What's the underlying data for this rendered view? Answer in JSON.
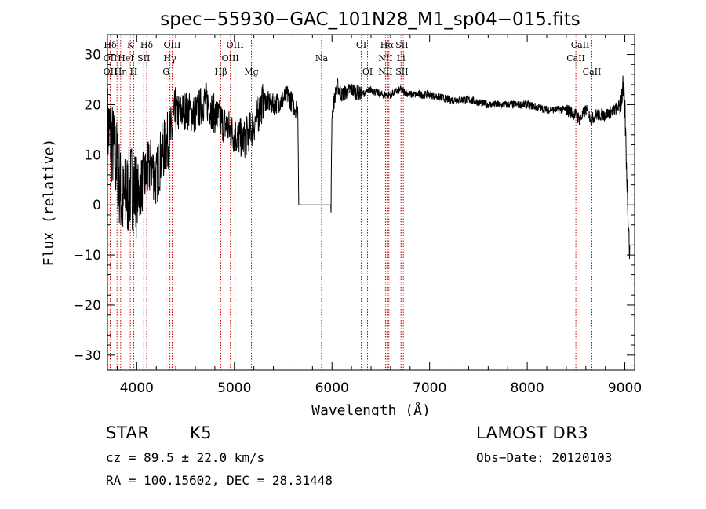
{
  "chart_data": {
    "type": "line",
    "title": "spec−55930−GAC_101N28_M1_sp04−015.fits",
    "xlabel": "Wavelength (Å)",
    "ylabel": "Flux (relative)",
    "xlim": [
      3700,
      9100
    ],
    "ylim": [
      -33,
      34
    ],
    "x_ticks": [
      4000,
      5000,
      6000,
      7000,
      8000,
      9000
    ],
    "y_ticks": [
      -30,
      -20,
      -10,
      0,
      10,
      20,
      30
    ],
    "x_tick_labels": [
      "4000",
      "5000",
      "6000",
      "7000",
      "8000",
      "9000"
    ],
    "y_tick_labels": [
      "−30",
      "−20",
      "−10",
      "0",
      "10",
      "20",
      "30"
    ],
    "series": [
      {
        "name": "flux",
        "x": [
          3700,
          3750,
          3800,
          3850,
          3900,
          3950,
          4000,
          4050,
          4100,
          4150,
          4200,
          4250,
          4300,
          4350,
          4400,
          4500,
          4600,
          4700,
          4800,
          4900,
          5000,
          5100,
          5200,
          5300,
          5400,
          5500,
          5550,
          5600,
          5650,
          5660,
          5990,
          6000,
          6050,
          6100,
          6200,
          6300,
          6400,
          6500,
          6600,
          6700,
          6800,
          7000,
          7200,
          7400,
          7600,
          7800,
          8000,
          8200,
          8400,
          8500,
          8540,
          8600,
          8660,
          8700,
          8800,
          8900,
          8950,
          8980,
          9000,
          9030,
          9050
        ],
        "y": [
          16,
          12,
          8,
          0,
          2,
          4,
          2,
          4,
          6,
          8,
          5,
          10,
          12,
          14,
          18,
          19,
          18,
          21,
          18,
          16,
          14,
          13,
          16,
          21,
          20,
          21,
          22,
          20,
          19,
          0,
          0,
          18,
          24,
          22,
          23,
          22,
          23,
          22,
          22,
          23,
          22,
          22,
          21,
          21,
          20,
          20,
          20,
          19,
          19,
          18,
          17,
          19,
          17,
          18,
          18,
          19,
          20,
          23,
          19,
          0,
          -10
        ]
      }
    ],
    "line_color": "#000000",
    "marker_color": "#cc0000",
    "lines": [
      {
        "x": 3728,
        "labels": [
          "Hδ",
          "OII",
          "OII"
        ]
      },
      {
        "x": 3798,
        "labels": [
          "",
          "",
          ""
        ]
      },
      {
        "x": 3835,
        "labels": [
          "",
          "",
          "Hη"
        ]
      },
      {
        "x": 3889,
        "labels": [
          "",
          "HeI",
          ""
        ]
      },
      {
        "x": 3934,
        "labels": [
          "K",
          "",
          ""
        ]
      },
      {
        "x": 3969,
        "labels": [
          "",
          "",
          "H"
        ]
      },
      {
        "x": 4072,
        "labels": [
          "",
          "SII",
          ""
        ]
      },
      {
        "x": 4102,
        "labels": [
          "Hδ",
          "",
          ""
        ]
      },
      {
        "x": 4300,
        "labels": [
          "",
          "",
          "G"
        ]
      },
      {
        "x": 4340,
        "labels": [
          "",
          "Hγ",
          ""
        ]
      },
      {
        "x": 4363,
        "labels": [
          "OIII",
          "",
          ""
        ]
      },
      {
        "x": 4861,
        "labels": [
          "",
          "",
          "Hβ"
        ]
      },
      {
        "x": 4959,
        "labels": [
          "",
          "OIII",
          ""
        ]
      },
      {
        "x": 5007,
        "labels": [
          "OIII",
          "",
          ""
        ]
      },
      {
        "x": 5175,
        "labels": [
          "",
          "",
          "Mg"
        ]
      },
      {
        "x": 5893,
        "labels": [
          "",
          "Na",
          ""
        ]
      },
      {
        "x": 6300,
        "labels": [
          "OI",
          "",
          ""
        ]
      },
      {
        "x": 6364,
        "labels": [
          "",
          "",
          "OI"
        ]
      },
      {
        "x": 6548,
        "labels": [
          "",
          "NII",
          "NII"
        ]
      },
      {
        "x": 6563,
        "labels": [
          "Hα",
          "",
          ""
        ]
      },
      {
        "x": 6583,
        "labels": [
          "",
          "",
          ""
        ]
      },
      {
        "x": 6707,
        "labels": [
          "",
          "Li",
          ""
        ]
      },
      {
        "x": 6716,
        "labels": [
          "SII",
          "",
          "SII"
        ]
      },
      {
        "x": 6731,
        "labels": [
          "",
          "",
          ""
        ]
      },
      {
        "x": 8498,
        "labels": [
          "",
          "CaII",
          ""
        ]
      },
      {
        "x": 8542,
        "labels": [
          "CaII",
          "",
          ""
        ]
      },
      {
        "x": 8662,
        "labels": [
          "",
          "",
          "CaII"
        ]
      }
    ]
  },
  "footer": {
    "object_type": "STAR",
    "subclass": "K5",
    "survey": "LAMOST DR3",
    "cz": "cz = 89.5 ± 22.0 km/s",
    "obs_date": "Obs−Date: 20120103",
    "coords": "RA = 100.15602, DEC =  28.31448"
  }
}
